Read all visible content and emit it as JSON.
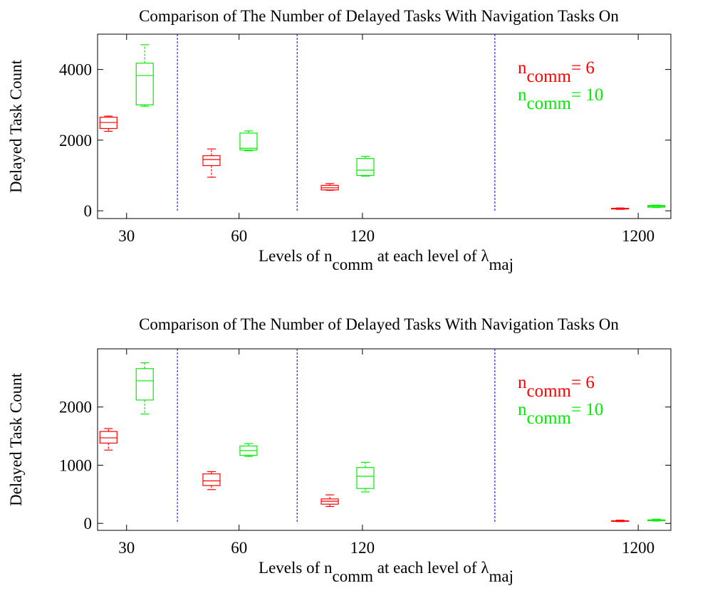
{
  "chart_data": [
    {
      "type": "box",
      "title": "Comparison of The Number of Delayed Tasks With Navigation Tasks On",
      "ylabel": "Delayed Task Count",
      "xlabel": [
        {
          "text": "Levels of n"
        },
        {
          "text": "comm",
          "sub": true
        },
        {
          "text": " at each level of λ"
        },
        {
          "text": "maj",
          "sub": true
        }
      ],
      "xlim": [
        0.7,
        16.5
      ],
      "xticks": [
        {
          "value": 1.5,
          "label": "30"
        },
        {
          "value": 4.6,
          "label": "60"
        },
        {
          "value": 8,
          "label": "120"
        },
        {
          "value": 15.6,
          "label": "1200"
        }
      ],
      "separators": [
        2.9,
        6.2,
        11.65
      ],
      "ylim": [
        -220,
        5000
      ],
      "yticks": [
        0,
        2000,
        4000
      ],
      "series": [
        {
          "legend_label": {
            "main": "n",
            "sub": "comm",
            "rest": "= 6"
          },
          "color": "#ff0000",
          "positions": [
            1,
            3.84,
            7.1,
            15.1
          ],
          "values": [
            {
              "whislo": 2250,
              "q1": 2330,
              "med": 2500,
              "q3": 2650,
              "whishi": 2680
            },
            {
              "whislo": 950,
              "q1": 1280,
              "med": 1450,
              "q3": 1560,
              "whishi": 1750
            },
            {
              "whislo": 580,
              "q1": 590,
              "med": 650,
              "q3": 720,
              "whishi": 770
            },
            {
              "whislo": 40,
              "q1": 50,
              "med": 60,
              "q3": 70,
              "whishi": 80
            }
          ]
        },
        {
          "legend_label": {
            "main": "n",
            "sub": "comm",
            "rest": "= 10"
          },
          "color": "#00ee00",
          "positions": [
            2,
            4.86,
            8.08,
            16.1
          ],
          "values": [
            {
              "whislo": 2960,
              "q1": 3000,
              "med": 3830,
              "q3": 4180,
              "whishi": 4700
            },
            {
              "whislo": 1700,
              "q1": 1720,
              "med": 1770,
              "q3": 2200,
              "whishi": 2260
            },
            {
              "whislo": 980,
              "q1": 1000,
              "med": 1150,
              "q3": 1480,
              "whishi": 1540
            },
            {
              "whislo": 90,
              "q1": 100,
              "med": 130,
              "q3": 150,
              "whishi": 160
            }
          ]
        }
      ]
    },
    {
      "type": "box",
      "title": "Comparison of The Number of Delayed Tasks With Navigation Tasks On",
      "ylabel": "Delayed Task Count",
      "xlabel": [
        {
          "text": "Levels of n"
        },
        {
          "text": "comm",
          "sub": true
        },
        {
          "text": " at each level of λ"
        },
        {
          "text": "maj",
          "sub": true
        }
      ],
      "xlim": [
        0.7,
        16.5
      ],
      "xticks": [
        {
          "value": 1.5,
          "label": "30"
        },
        {
          "value": 4.6,
          "label": "60"
        },
        {
          "value": 8,
          "label": "120"
        },
        {
          "value": 15.6,
          "label": "1200"
        }
      ],
      "separators": [
        2.9,
        6.2,
        11.65
      ],
      "ylim": [
        -120,
        3000
      ],
      "yticks": [
        0,
        1000,
        2000
      ],
      "series": [
        {
          "legend_label": {
            "main": "n",
            "sub": "comm",
            "rest": "= 6"
          },
          "color": "#ff0000",
          "positions": [
            1,
            3.84,
            7.1,
            15.1
          ],
          "values": [
            {
              "whislo": 1260,
              "q1": 1380,
              "med": 1470,
              "q3": 1580,
              "whishi": 1630
            },
            {
              "whislo": 580,
              "q1": 650,
              "med": 730,
              "q3": 850,
              "whishi": 890
            },
            {
              "whislo": 290,
              "q1": 330,
              "med": 380,
              "q3": 420,
              "whishi": 490
            },
            {
              "whislo": 30,
              "q1": 35,
              "med": 40,
              "q3": 45,
              "whishi": 55
            }
          ]
        },
        {
          "legend_label": {
            "main": "n",
            "sub": "comm",
            "rest": "= 10"
          },
          "color": "#00ee00",
          "positions": [
            2,
            4.86,
            8.08,
            16.1
          ],
          "values": [
            {
              "whislo": 1880,
              "q1": 2120,
              "med": 2450,
              "q3": 2660,
              "whishi": 2760
            },
            {
              "whislo": 1150,
              "q1": 1170,
              "med": 1250,
              "q3": 1330,
              "whishi": 1370
            },
            {
              "whislo": 540,
              "q1": 600,
              "med": 810,
              "q3": 960,
              "whishi": 1050
            },
            {
              "whislo": 40,
              "q1": 45,
              "med": 55,
              "q3": 60,
              "whishi": 70
            }
          ]
        }
      ]
    }
  ]
}
